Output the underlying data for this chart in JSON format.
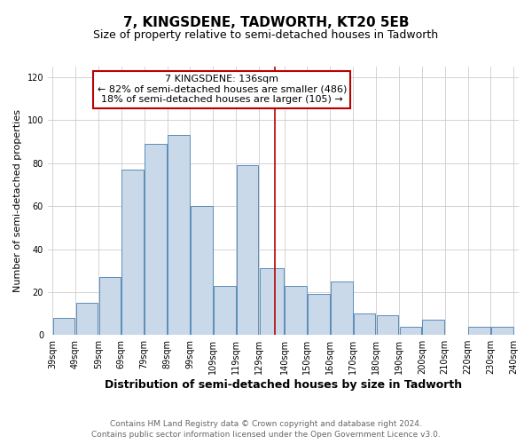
{
  "title": "7, KINGSDENE, TADWORTH, KT20 5EB",
  "subtitle": "Size of property relative to semi-detached houses in Tadworth",
  "xlabel": "Distribution of semi-detached houses by size in Tadworth",
  "ylabel": "Number of semi-detached properties",
  "footer_line1": "Contains HM Land Registry data © Crown copyright and database right 2024.",
  "footer_line2": "Contains public sector information licensed under the Open Government Licence v3.0.",
  "annotation_title": "7 KINGSDENE: 136sqm",
  "annotation_line1": "← 82% of semi-detached houses are smaller (486)",
  "annotation_line2": "18% of semi-detached houses are larger (105) →",
  "property_size": 136,
  "bin_edges": [
    39,
    49,
    59,
    69,
    79,
    89,
    99,
    109,
    119,
    129,
    140,
    150,
    160,
    170,
    180,
    190,
    200,
    210,
    220,
    230,
    240
  ],
  "bar_heights": [
    8,
    15,
    27,
    77,
    89,
    93,
    60,
    23,
    79,
    31,
    23,
    19,
    25,
    10,
    9,
    4,
    7,
    0,
    4,
    4
  ],
  "bar_color": "#c9d9ea",
  "bar_edge_color": "#5b8db8",
  "vline_color": "#bb0000",
  "vline_x": 136,
  "box_edge_color": "#bb0000",
  "ylim": [
    0,
    125
  ],
  "yticks": [
    0,
    20,
    40,
    60,
    80,
    100,
    120
  ],
  "background_color": "#ffffff",
  "plot_bg_color": "#ffffff",
  "grid_color": "#cccccc",
  "title_fontsize": 11,
  "subtitle_fontsize": 9,
  "xlabel_fontsize": 9,
  "ylabel_fontsize": 8,
  "tick_fontsize": 7,
  "annotation_fontsize": 8,
  "footer_fontsize": 6.5
}
